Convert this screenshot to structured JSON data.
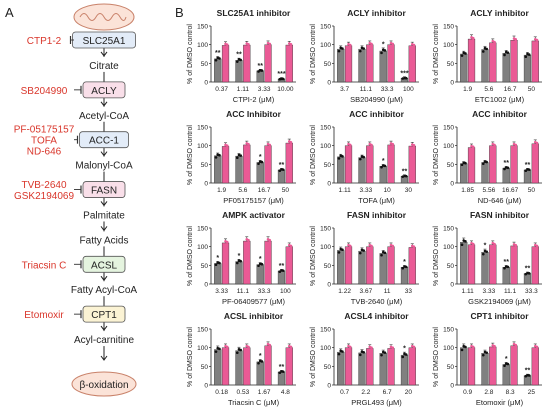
{
  "panel_labels": {
    "a": "A",
    "b": "B"
  },
  "pathway": {
    "nodes": [
      {
        "text": "SLC25A1",
        "enzyme": true,
        "color": "#e3ecf8"
      },
      {
        "text": "Citrate",
        "enzyme": false
      },
      {
        "text": "ACLY",
        "enzyme": true,
        "color": "#f9dfe9"
      },
      {
        "text": "Acetyl-CoA",
        "enzyme": false
      },
      {
        "text": "ACC-1",
        "enzyme": true,
        "color": "#e3ecf8"
      },
      {
        "text": "Malonyl-CoA",
        "enzyme": false
      },
      {
        "text": "FASN",
        "enzyme": true,
        "color": "#f9dfe9"
      },
      {
        "text": "Palmitate",
        "enzyme": false
      },
      {
        "text": "Fatty Acids",
        "enzyme": false
      },
      {
        "text": "ACSL",
        "enzyme": true,
        "color": "#e5f4df"
      },
      {
        "text": "Fatty Acyl-CoA",
        "enzyme": false
      },
      {
        "text": "CPT1",
        "enzyme": true,
        "color": "#fbf3d4"
      },
      {
        "text": "Acyl-carnitine",
        "enzyme": false
      },
      {
        "text": "β-oxidation",
        "enzyme": false
      }
    ],
    "inhibitors": [
      {
        "target": "SLC25A1",
        "lines": [
          "CTP1-2"
        ]
      },
      {
        "target": "ACLY",
        "lines": [
          "SB204990"
        ]
      },
      {
        "target": "ACC-1",
        "lines": [
          "PF-05175157",
          "TOFA",
          "ND-646"
        ]
      },
      {
        "target": "FASN",
        "lines": [
          "TVB-2640",
          "GSK2194069"
        ]
      },
      {
        "target": "ACSL",
        "lines": [
          "Triacsin C"
        ]
      },
      {
        "target": "CPT1",
        "lines": [
          "Etomoxir"
        ]
      }
    ],
    "inhibitor_color": "#d9362b"
  },
  "colors": {
    "gray_bar": "#808080",
    "pink_bar": "#ea5a95",
    "significance": "#222222"
  },
  "chart_data": [
    {
      "type": "bar",
      "title": "SLC25A1 inhibitor",
      "xlabel": "CTPI-2 (μM)",
      "ylabel": "% of DMSO control",
      "ylim": [
        0,
        150
      ],
      "yticks": [
        0,
        50,
        100,
        150
      ],
      "categories": [
        "0.37",
        "1.11",
        "3.33",
        "10.00"
      ],
      "series": [
        {
          "color": "gray",
          "values": [
            62,
            58,
            30,
            8
          ]
        },
        {
          "color": "pink",
          "values": [
            98,
            99,
            100,
            99
          ]
        }
      ],
      "significance": [
        "**",
        "**",
        "**",
        "***"
      ]
    },
    {
      "type": "bar",
      "title": "ACLY inhibitor",
      "xlabel": "SB204990 (μM)",
      "ylabel": "% of DMSO control",
      "ylim": [
        0,
        150
      ],
      "yticks": [
        0,
        50,
        100,
        150
      ],
      "categories": [
        "3.7",
        "11.1",
        "33.3",
        "100"
      ],
      "series": [
        {
          "color": "gray",
          "values": [
            88,
            88,
            83,
            10
          ]
        },
        {
          "color": "pink",
          "values": [
            97,
            100,
            100,
            97
          ]
        }
      ],
      "significance": [
        "",
        "",
        "*",
        "***"
      ]
    },
    {
      "type": "bar",
      "title": "ACLY inhibitor",
      "xlabel": "ETC1002 (μM)",
      "ylabel": "% of DMSO control",
      "ylim": [
        0,
        150
      ],
      "yticks": [
        0,
        50,
        100,
        150
      ],
      "categories": [
        "1.9",
        "5.6",
        "16.7",
        "50"
      ],
      "series": [
        {
          "color": "gray",
          "values": [
            75,
            87,
            77,
            72
          ]
        },
        {
          "color": "pink",
          "values": [
            115,
            105,
            112,
            110
          ]
        }
      ],
      "significance": [
        "",
        "",
        "",
        ""
      ]
    },
    {
      "type": "bar",
      "title": "ACC Inhibitor",
      "xlabel": "PF05175157 (μM)",
      "ylabel": "% of DMSO control",
      "ylim": [
        0,
        150
      ],
      "yticks": [
        0,
        50,
        100,
        150
      ],
      "categories": [
        "1.9",
        "5.6",
        "16.7",
        "50"
      ],
      "series": [
        {
          "color": "gray",
          "values": [
            73,
            72,
            55,
            35
          ]
        },
        {
          "color": "pink",
          "values": [
            98,
            102,
            100,
            107
          ]
        }
      ],
      "significance": [
        "",
        "",
        "*",
        "**"
      ]
    },
    {
      "type": "bar",
      "title": "ACC inhibitor",
      "xlabel": "TOFA (μM)",
      "ylabel": "% of DMSO control",
      "ylim": [
        0,
        150
      ],
      "yticks": [
        0,
        50,
        100,
        150
      ],
      "categories": [
        "1.11",
        "3.33",
        "10",
        "30"
      ],
      "series": [
        {
          "color": "gray",
          "values": [
            70,
            68,
            45,
            18
          ]
        },
        {
          "color": "pink",
          "values": [
            100,
            100,
            102,
            99
          ]
        }
      ],
      "significance": [
        "",
        "",
        "*",
        "**"
      ]
    },
    {
      "type": "bar",
      "title": "ACC inhibitor",
      "xlabel": "ND-646 (μM)",
      "ylabel": "% of DMSO control",
      "ylim": [
        0,
        150
      ],
      "yticks": [
        0,
        50,
        100,
        150
      ],
      "categories": [
        "1.85",
        "5.56",
        "16.67",
        "50"
      ],
      "series": [
        {
          "color": "gray",
          "values": [
            52,
            55,
            40,
            35
          ]
        },
        {
          "color": "pink",
          "values": [
            95,
            100,
            100,
            105
          ]
        }
      ],
      "significance": [
        "",
        "",
        "**",
        "**"
      ]
    },
    {
      "type": "bar",
      "title": "AMPK activator",
      "xlabel": "PF-06409577 (μM)",
      "ylabel": "% of DMSO control",
      "ylim": [
        0,
        150
      ],
      "yticks": [
        0,
        50,
        100,
        150
      ],
      "categories": [
        "3.33",
        "11.1",
        "33.3",
        "100"
      ],
      "series": [
        {
          "color": "gray",
          "values": [
            55,
            60,
            52,
            35
          ]
        },
        {
          "color": "pink",
          "values": [
            110,
            115,
            115,
            100
          ]
        }
      ],
      "significance": [
        "*",
        "*",
        "*",
        "**"
      ]
    },
    {
      "type": "bar",
      "title": "FASN inhibitor",
      "xlabel": "TVB-2640 (μM)",
      "ylabel": "% of DMSO control",
      "ylim": [
        0,
        150
      ],
      "yticks": [
        0,
        50,
        100,
        150
      ],
      "categories": [
        "1.22",
        "3.67",
        "11",
        "33"
      ],
      "series": [
        {
          "color": "gray",
          "values": [
            90,
            88,
            82,
            45
          ]
        },
        {
          "color": "pink",
          "values": [
            100,
            100,
            100,
            98
          ]
        }
      ],
      "significance": [
        "",
        "",
        "",
        "*"
      ]
    },
    {
      "type": "bar",
      "title": "FASN inhibitor",
      "xlabel": "GSK2194069 (μM)",
      "ylabel": "% of DMSO control",
      "ylim": [
        0,
        150
      ],
      "yticks": [
        0,
        50,
        100,
        150
      ],
      "categories": [
        "1.11",
        "3.33",
        "11.1",
        "33.3"
      ],
      "series": [
        {
          "color": "gray",
          "values": [
            112,
            85,
            45,
            28
          ]
        },
        {
          "color": "pink",
          "values": [
            105,
            105,
            102,
            100
          ]
        }
      ],
      "significance": [
        "",
        "*",
        "**",
        "**"
      ]
    },
    {
      "type": "bar",
      "title": "ACSL inhibitor",
      "xlabel": "Triacsin C (μM)",
      "ylabel": "% of DMSO control",
      "ylim": [
        0,
        150
      ],
      "yticks": [
        0,
        50,
        100,
        150
      ],
      "categories": [
        "0.18",
        "0.53",
        "1.67",
        "4.8"
      ],
      "series": [
        {
          "color": "gray",
          "values": [
            95,
            92,
            62,
            35
          ]
        },
        {
          "color": "pink",
          "values": [
            100,
            100,
            105,
            100
          ]
        }
      ],
      "significance": [
        "",
        "",
        "*",
        "**"
      ]
    },
    {
      "type": "bar",
      "title": "ACSL4 inhibitor",
      "xlabel": "PRGL493 (μM)",
      "ylabel": "% of DMSO control",
      "ylim": [
        0,
        150
      ],
      "yticks": [
        0,
        50,
        100,
        150
      ],
      "categories": [
        "0.7",
        "2.2",
        "6.7",
        "20"
      ],
      "series": [
        {
          "color": "gray",
          "values": [
            88,
            86,
            85,
            80
          ]
        },
        {
          "color": "pink",
          "values": [
            100,
            98,
            98,
            100
          ]
        }
      ],
      "significance": [
        "",
        "",
        "",
        "*"
      ]
    },
    {
      "type": "bar",
      "title": "CPT1 inhibitor",
      "xlabel": "Etomoxir (μM)",
      "ylabel": "% of DMSO control",
      "ylim": [
        0,
        150
      ],
      "yticks": [
        0,
        50,
        100,
        150
      ],
      "categories": [
        "0.9",
        "2.8",
        "8.3",
        "25"
      ],
      "series": [
        {
          "color": "gray",
          "values": [
            100,
            85,
            55,
            25
          ]
        },
        {
          "color": "pink",
          "values": [
            100,
            102,
            105,
            100
          ]
        }
      ],
      "significance": [
        "",
        "",
        "*",
        "**"
      ]
    }
  ]
}
